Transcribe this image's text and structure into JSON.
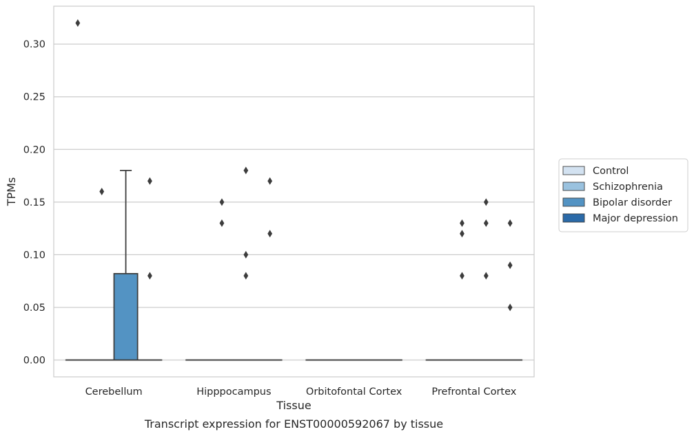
{
  "chart_data": {
    "type": "box",
    "xlabel": "Tissue",
    "ylabel": "TPMs",
    "caption": "Transcript expression for ENST00000592067 by tissue",
    "ylim": [
      -0.016,
      0.336
    ],
    "yticks": [
      0.0,
      0.05,
      0.1,
      0.15,
      0.2,
      0.25,
      0.3
    ],
    "ytick_labels": [
      "0.00",
      "0.05",
      "0.10",
      "0.15",
      "0.20",
      "0.25",
      "0.30"
    ],
    "grid": "horizontal",
    "legend_position": "right",
    "categories": [
      "Cerebellum",
      "Hipppocampus",
      "Orbitofontal Cortex",
      "Prefrontal Cortex"
    ],
    "series": [
      {
        "name": "Control",
        "color": "#d3e2f1",
        "boxes": [
          {
            "q1": 0,
            "median": 0,
            "q3": 0,
            "whisker_low": 0,
            "whisker_high": 0,
            "outliers": [
              0.32
            ]
          },
          {
            "q1": 0,
            "median": 0,
            "q3": 0,
            "whisker_low": 0,
            "whisker_high": 0,
            "outliers": []
          },
          {
            "q1": 0,
            "median": 0,
            "q3": 0,
            "whisker_low": 0,
            "whisker_high": 0,
            "outliers": []
          },
          {
            "q1": 0,
            "median": 0,
            "q3": 0,
            "whisker_low": 0,
            "whisker_high": 0,
            "outliers": []
          }
        ]
      },
      {
        "name": "Schizophrenia",
        "color": "#9ac2df",
        "boxes": [
          {
            "q1": 0,
            "median": 0,
            "q3": 0,
            "whisker_low": 0,
            "whisker_high": 0,
            "outliers": [
              0.16
            ]
          },
          {
            "q1": 0,
            "median": 0,
            "q3": 0,
            "whisker_low": 0,
            "whisker_high": 0,
            "outliers": [
              0.15,
              0.13
            ]
          },
          {
            "q1": 0,
            "median": 0,
            "q3": 0,
            "whisker_low": 0,
            "whisker_high": 0,
            "outliers": []
          },
          {
            "q1": 0,
            "median": 0,
            "q3": 0,
            "whisker_low": 0,
            "whisker_high": 0,
            "outliers": [
              0.13,
              0.12,
              0.08
            ]
          }
        ]
      },
      {
        "name": "Bipolar disorder",
        "color": "#5393c3",
        "boxes": [
          {
            "q1": 0,
            "median": 0,
            "q3": 0.082,
            "whisker_low": 0,
            "whisker_high": 0.18,
            "outliers": []
          },
          {
            "q1": 0,
            "median": 0,
            "q3": 0,
            "whisker_low": 0,
            "whisker_high": 0,
            "outliers": [
              0.18,
              0.1,
              0.08
            ]
          },
          {
            "q1": 0,
            "median": 0,
            "q3": 0,
            "whisker_low": 0,
            "whisker_high": 0,
            "outliers": []
          },
          {
            "q1": 0,
            "median": 0,
            "q3": 0,
            "whisker_low": 0,
            "whisker_high": 0,
            "outliers": [
              0.15,
              0.13,
              0.08
            ]
          }
        ]
      },
      {
        "name": "Major depression",
        "color": "#2b6aa8",
        "boxes": [
          {
            "q1": 0,
            "median": 0,
            "q3": 0,
            "whisker_low": 0,
            "whisker_high": 0,
            "outliers": [
              0.17,
              0.08
            ]
          },
          {
            "q1": 0,
            "median": 0,
            "q3": 0,
            "whisker_low": 0,
            "whisker_high": 0,
            "outliers": [
              0.17,
              0.12
            ]
          },
          {
            "q1": 0,
            "median": 0,
            "q3": 0,
            "whisker_low": 0,
            "whisker_high": 0,
            "outliers": []
          },
          {
            "q1": 0,
            "median": 0,
            "q3": 0,
            "whisker_low": 0,
            "whisker_high": 0,
            "outliers": [
              0.13,
              0.09,
              0.05
            ]
          }
        ]
      }
    ]
  }
}
